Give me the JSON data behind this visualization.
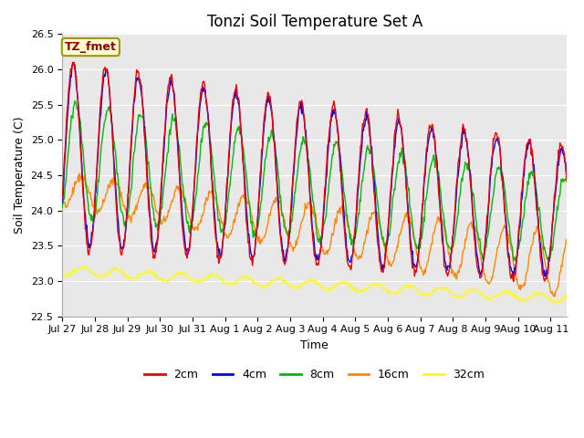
{
  "title": "Tonzi Soil Temperature Set A",
  "ylabel": "Soil Temperature (C)",
  "xlabel": "Time",
  "ylim": [
    22.5,
    26.5
  ],
  "yticks": [
    22.5,
    23.0,
    23.5,
    24.0,
    24.5,
    25.0,
    25.5,
    26.0,
    26.5
  ],
  "xtick_labels": [
    "Jul 27",
    "Jul 28",
    "Jul 29",
    "Jul 30",
    "Jul 31",
    "Aug 1",
    "Aug 2",
    "Aug 3",
    "Aug 4",
    "Aug 5",
    "Aug 6",
    "Aug 7",
    "Aug 8",
    "Aug 9",
    "Aug 10",
    "Aug 11"
  ],
  "annotation": "TZ_fmet",
  "annotation_color": "#8b0000",
  "annotation_bg": "#ffffcc",
  "annotation_border": "#999900",
  "plot_bg_color": "#e8e8e8",
  "line_colors": [
    "#ee0000",
    "#0000ee",
    "#00bb00",
    "#ff8800",
    "#ffff00"
  ],
  "line_labels": [
    "2cm",
    "4cm",
    "8cm",
    "16cm",
    "32cm"
  ],
  "line_width": 1.0,
  "title_fontsize": 12,
  "label_fontsize": 9,
  "tick_fontsize": 8,
  "legend_fontsize": 9,
  "n_points": 720,
  "days": 15.5
}
